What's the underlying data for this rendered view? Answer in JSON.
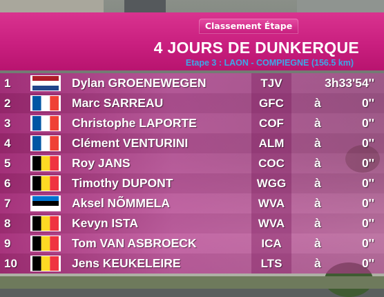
{
  "header": {
    "badge": "Classement Étape",
    "title": "4 JOURS DE DUNKERQUE",
    "subtitle": "Etape 3 : LAON - COMPIEGNE (156.5 km)"
  },
  "colors": {
    "header_pink": "#c91f7f",
    "subtitle_blue": "#3ea7e8",
    "row_band": "#b0388c"
  },
  "rows": [
    {
      "pos": "1",
      "flag": "netherlands-flag",
      "name": "Dylan GROENEWEGEN",
      "team": "TJV",
      "gap": "",
      "time": "3h33'54''"
    },
    {
      "pos": "2",
      "flag": "france-flag",
      "name": "Marc SARREAU",
      "team": "GFC",
      "gap": "à",
      "time": "0''"
    },
    {
      "pos": "3",
      "flag": "france-flag",
      "name": "Christophe LAPORTE",
      "team": "COF",
      "gap": "à",
      "time": "0''"
    },
    {
      "pos": "4",
      "flag": "france-flag",
      "name": "Clément VENTURINI",
      "team": "ALM",
      "gap": "à",
      "time": "0''"
    },
    {
      "pos": "5",
      "flag": "belgium-flag",
      "name": "Roy JANS",
      "team": "COC",
      "gap": "à",
      "time": "0''"
    },
    {
      "pos": "6",
      "flag": "belgium-flag",
      "name": "Timothy DUPONT",
      "team": "WGG",
      "gap": "à",
      "time": "0''"
    },
    {
      "pos": "7",
      "flag": "estonia-flag",
      "name": "Aksel NÕMMELA",
      "team": "WVA",
      "gap": "à",
      "time": "0''"
    },
    {
      "pos": "8",
      "flag": "belgium-flag",
      "name": "Kevyn ISTA",
      "team": "WVA",
      "gap": "à",
      "time": "0''"
    },
    {
      "pos": "9",
      "flag": "belgium-flag",
      "name": "Tom VAN ASBROECK",
      "team": "ICA",
      "gap": "à",
      "time": "0''"
    },
    {
      "pos": "10",
      "flag": "belgium-flag",
      "name": "Jens KEUKELEIRE",
      "team": "LTS",
      "gap": "à",
      "time": "0''"
    }
  ]
}
